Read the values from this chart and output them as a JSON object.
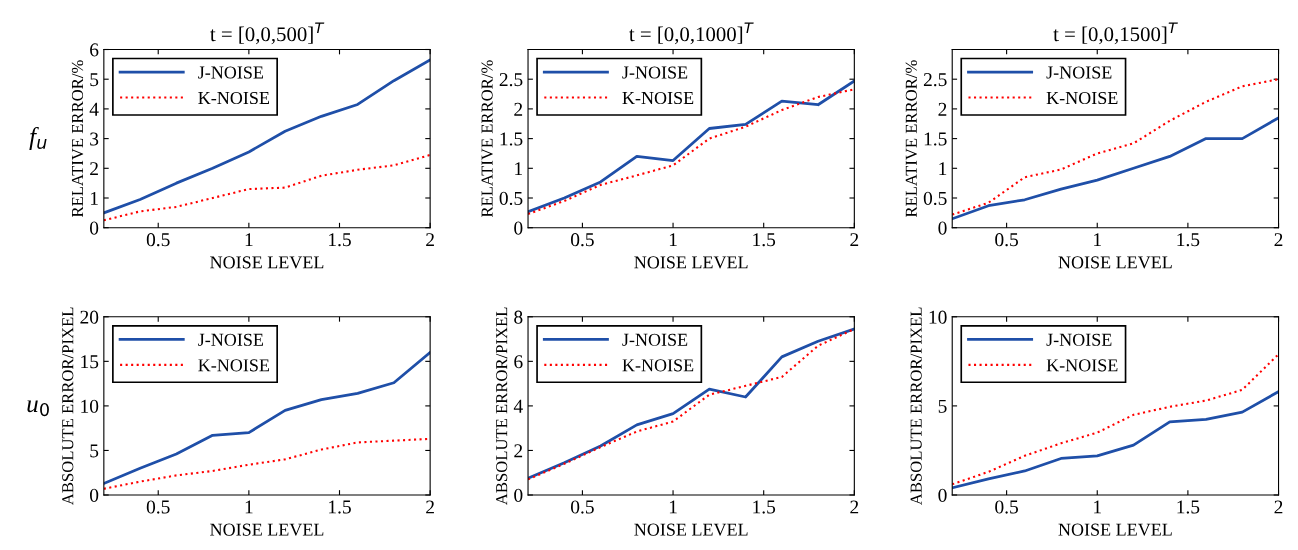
{
  "chart_data": [
    {
      "type": "line",
      "title": "t = [0,0,500]$^{T}$",
      "xlabel": "NOISE LEVEL",
      "ylabel": "RELATIVE ERROR/%",
      "annotations": [
        "f$_{u}$"
      ],
      "x": [
        0.2,
        0.4,
        0.6,
        0.8,
        1.0,
        1.2,
        1.4,
        1.6,
        1.8,
        2.0
      ],
      "xlim": [
        0.2,
        2
      ],
      "xticks": [
        0.5,
        1,
        1.5,
        2
      ],
      "ylim": [
        0,
        6
      ],
      "yticks": [
        0,
        1,
        2,
        3,
        4,
        5,
        6
      ],
      "grid": false,
      "legend": "top left",
      "series": [
        {
          "name": "J-NOISE",
          "color": "#1f4fa8",
          "line_style": "solid",
          "values": [
            0.5,
            0.95,
            1.5,
            2.0,
            2.55,
            3.25,
            3.75,
            4.15,
            4.95,
            5.65
          ]
        },
        {
          "name": "K-NOISE",
          "color": "#ff0000",
          "line_style": "dotted",
          "values": [
            0.25,
            0.55,
            0.7,
            1.0,
            1.3,
            1.35,
            1.75,
            1.95,
            2.1,
            2.45
          ]
        }
      ]
    },
    {
      "type": "line",
      "title": "t = [0,0,1000]$^{T}$",
      "xlabel": "NOISE LEVEL",
      "ylabel": "RELATIVE ERROR/%",
      "x": [
        0.2,
        0.4,
        0.6,
        0.8,
        1.0,
        1.2,
        1.4,
        1.6,
        1.8,
        2.0
      ],
      "xlim": [
        0.2,
        2
      ],
      "xticks": [
        0.5,
        1,
        1.5,
        2
      ],
      "ylim": [
        0,
        3
      ],
      "yticks": [
        0,
        0.5,
        1,
        1.5,
        2,
        2.5
      ],
      "grid": false,
      "legend": "top left",
      "series": [
        {
          "name": "J-NOISE",
          "color": "#1f4fa8",
          "line_style": "solid",
          "values": [
            0.27,
            0.5,
            0.77,
            1.2,
            1.13,
            1.67,
            1.74,
            2.13,
            2.07,
            2.47
          ]
        },
        {
          "name": "K-NOISE",
          "color": "#ff0000",
          "line_style": "dotted",
          "values": [
            0.23,
            0.45,
            0.72,
            0.88,
            1.05,
            1.5,
            1.7,
            1.98,
            2.2,
            2.33
          ]
        }
      ]
    },
    {
      "type": "line",
      "title": "t = [0,0,1500]$^{T}$",
      "xlabel": "NOISE LEVEL",
      "ylabel": "RELATIVE ERROR/%",
      "x": [
        0.2,
        0.4,
        0.6,
        0.8,
        1.0,
        1.2,
        1.4,
        1.6,
        1.8,
        2.0
      ],
      "xlim": [
        0.2,
        2
      ],
      "xticks": [
        0.5,
        1,
        1.5,
        2
      ],
      "ylim": [
        0,
        3
      ],
      "yticks": [
        0,
        0.5,
        1,
        1.5,
        2,
        2.5
      ],
      "grid": false,
      "legend": "top left",
      "series": [
        {
          "name": "J-NOISE",
          "color": "#1f4fa8",
          "line_style": "solid",
          "values": [
            0.15,
            0.37,
            0.47,
            0.65,
            0.8,
            1.0,
            1.2,
            1.5,
            1.5,
            1.85
          ]
        },
        {
          "name": "K-NOISE",
          "color": "#ff0000",
          "line_style": "dotted",
          "values": [
            0.22,
            0.42,
            0.85,
            0.98,
            1.25,
            1.42,
            1.8,
            2.12,
            2.38,
            2.5
          ]
        }
      ]
    },
    {
      "type": "line",
      "xlabel": "NOISE LEVEL",
      "ylabel": "ABSOLUTE ERROR/PIXEL",
      "annotations": [
        "u$_{0}$"
      ],
      "x": [
        0.2,
        0.4,
        0.6,
        0.8,
        1.0,
        1.2,
        1.4,
        1.6,
        1.8,
        2.0
      ],
      "xlim": [
        0.2,
        2
      ],
      "xticks": [
        0.5,
        1,
        1.5,
        2
      ],
      "ylim": [
        0,
        20
      ],
      "yticks": [
        0,
        5,
        10,
        15,
        20
      ],
      "grid": false,
      "legend": "top left",
      "series": [
        {
          "name": "J-NOISE",
          "color": "#1f4fa8",
          "line_style": "solid",
          "values": [
            1.3,
            3.0,
            4.6,
            6.7,
            7.0,
            9.5,
            10.7,
            11.4,
            12.6,
            16.0
          ]
        },
        {
          "name": "K-NOISE",
          "color": "#ff0000",
          "line_style": "dotted",
          "values": [
            0.7,
            1.5,
            2.2,
            2.7,
            3.4,
            4.0,
            5.1,
            5.9,
            6.1,
            6.3
          ]
        }
      ]
    },
    {
      "type": "line",
      "xlabel": "NOISE LEVEL",
      "ylabel": "ABSOLUTE ERROR/PIXEL",
      "x": [
        0.2,
        0.4,
        0.6,
        0.8,
        1.0,
        1.2,
        1.4,
        1.6,
        1.8,
        2.0
      ],
      "xlim": [
        0.2,
        2
      ],
      "xticks": [
        0.5,
        1,
        1.5,
        2
      ],
      "ylim": [
        0,
        8
      ],
      "yticks": [
        0,
        2,
        4,
        6,
        8
      ],
      "grid": false,
      "legend": "top left",
      "series": [
        {
          "name": "J-NOISE",
          "color": "#1f4fa8",
          "line_style": "solid",
          "values": [
            0.75,
            1.45,
            2.2,
            3.15,
            3.65,
            4.75,
            4.4,
            6.2,
            6.9,
            7.45
          ]
        },
        {
          "name": "K-NOISE",
          "color": "#ff0000",
          "line_style": "dotted",
          "values": [
            0.7,
            1.4,
            2.15,
            2.85,
            3.3,
            4.5,
            4.9,
            5.3,
            6.7,
            7.45
          ]
        }
      ]
    },
    {
      "type": "line",
      "xlabel": "NOISE LEVEL",
      "ylabel": "ABSOLUTE ERROR/PIXEL",
      "x": [
        0.2,
        0.4,
        0.6,
        0.8,
        1.0,
        1.2,
        1.4,
        1.6,
        1.8,
        2.0
      ],
      "xlim": [
        0.2,
        2
      ],
      "xticks": [
        0.5,
        1,
        1.5,
        2
      ],
      "ylim": [
        0,
        10
      ],
      "yticks": [
        0,
        5,
        10
      ],
      "grid": false,
      "legend": "top left",
      "series": [
        {
          "name": "J-NOISE",
          "color": "#1f4fa8",
          "line_style": "solid",
          "values": [
            0.4,
            0.9,
            1.35,
            2.05,
            2.2,
            2.8,
            4.1,
            4.25,
            4.65,
            5.8
          ]
        },
        {
          "name": "K-NOISE",
          "color": "#ff0000",
          "line_style": "dotted",
          "values": [
            0.6,
            1.3,
            2.2,
            2.9,
            3.5,
            4.5,
            4.95,
            5.3,
            5.9,
            7.9
          ]
        }
      ]
    }
  ]
}
